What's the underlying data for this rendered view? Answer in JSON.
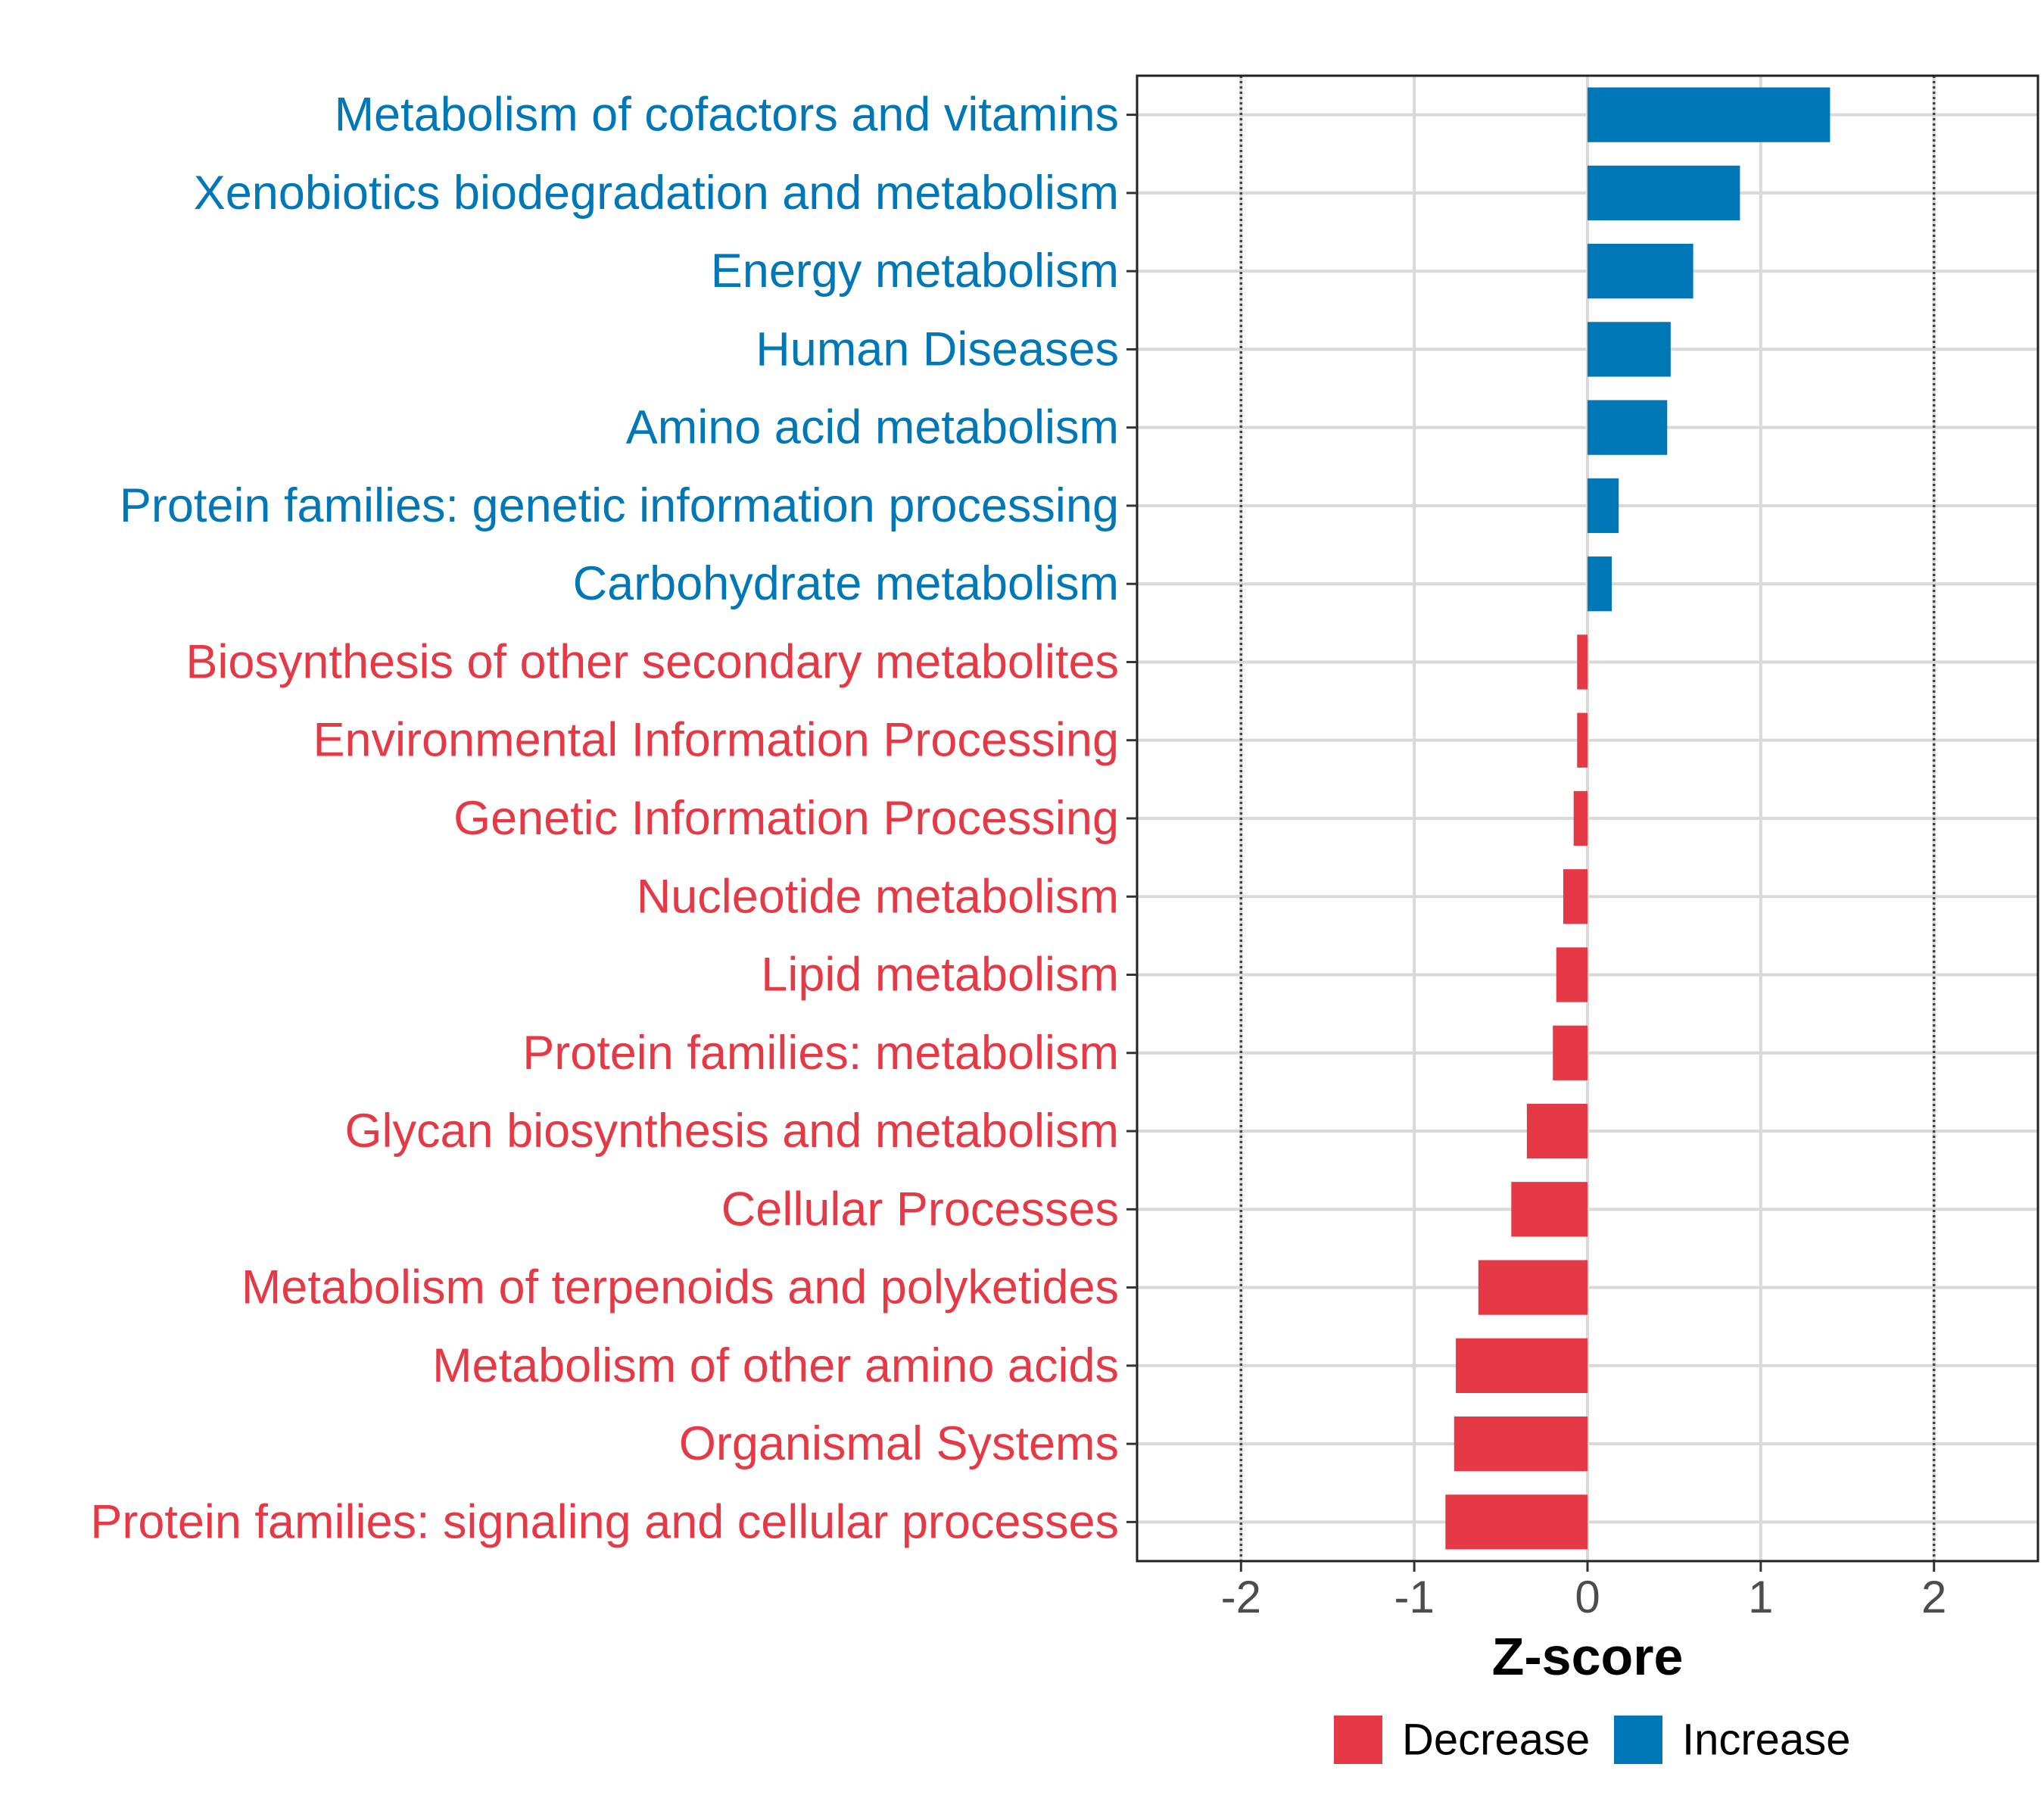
{
  "chart_data": {
    "type": "bar",
    "orientation": "horizontal",
    "title": "",
    "xlabel": "Z-score",
    "ylabel": "",
    "xlim": [
      -2.6,
      2.6
    ],
    "xticks": [
      -2,
      -1,
      0,
      1,
      2
    ],
    "tick_labels": [
      "-2",
      "-1",
      "0",
      "1",
      "2"
    ],
    "reference_lines": [
      -2,
      2
    ],
    "grid": true,
    "categories": [
      "Metabolism of cofactors and vitamins",
      "Xenobiotics biodegradation and metabolism",
      "Energy metabolism",
      "Human Diseases",
      "Amino acid metabolism",
      "Protein families: genetic information processing",
      "Carbohydrate metabolism",
      "Biosynthesis of other secondary metabolites",
      "Environmental Information Processing",
      "Genetic Information Processing",
      "Nucleotide metabolism",
      "Lipid metabolism",
      "Protein families: metabolism",
      "Glycan biosynthesis and metabolism",
      "Cellular Processes",
      "Metabolism of terpenoids and polyketides",
      "Metabolism of other amino acids",
      "Organismal Systems",
      "Protein families: signaling and cellular processes"
    ],
    "values": [
      1.4,
      0.88,
      0.61,
      0.48,
      0.46,
      0.18,
      0.14,
      -0.06,
      -0.06,
      -0.08,
      -0.14,
      -0.18,
      -0.2,
      -0.35,
      -0.44,
      -0.63,
      -0.76,
      -0.77,
      -0.82
    ],
    "groups": [
      "Increase",
      "Increase",
      "Increase",
      "Increase",
      "Increase",
      "Increase",
      "Increase",
      "Decrease",
      "Decrease",
      "Decrease",
      "Decrease",
      "Decrease",
      "Decrease",
      "Decrease",
      "Decrease",
      "Decrease",
      "Decrease",
      "Decrease",
      "Decrease"
    ],
    "legend": [
      {
        "name": "Decrease",
        "color": "#E63946"
      },
      {
        "name": "Increase",
        "color": "#0077B6"
      }
    ],
    "legend_position": "bottom"
  }
}
